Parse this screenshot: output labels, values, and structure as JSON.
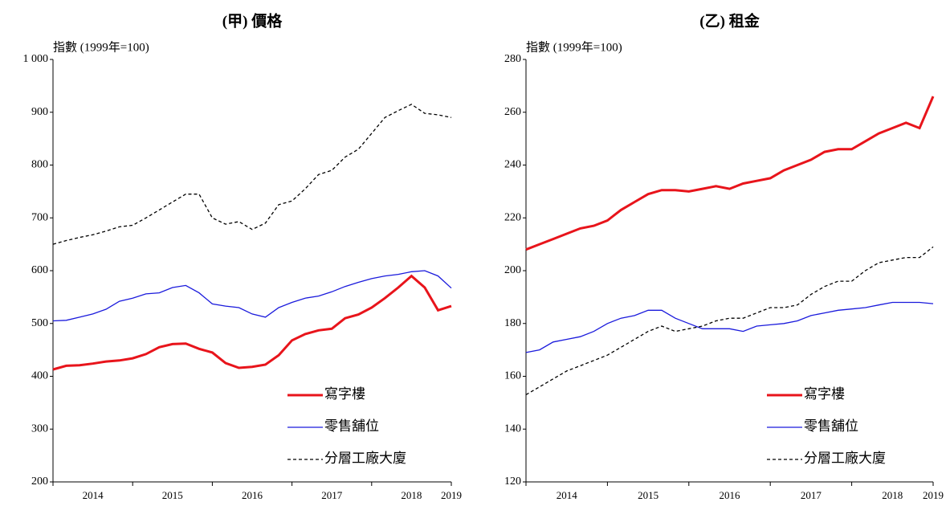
{
  "chart_data": [
    {
      "type": "line",
      "title": "(甲) 價格",
      "y_label": "指數 (1999年=100)",
      "categories": [
        null,
        null,
        null,
        "2014",
        null,
        null,
        null,
        null,
        null,
        "2015",
        null,
        null,
        null,
        null,
        null,
        "2016",
        null,
        null,
        null,
        null,
        null,
        "2017",
        null,
        null,
        null,
        null,
        null,
        "2018",
        null,
        null,
        "2019"
      ],
      "ylim": [
        200,
        1000
      ],
      "yticks": [
        200,
        300,
        400,
        500,
        600,
        700,
        800,
        900,
        {
          "value": 1000,
          "label": "1 000"
        }
      ],
      "legend": "lower right",
      "series": [
        {
          "name": "寫字樓",
          "color": "#e8141b",
          "width": 3,
          "dash": false,
          "values": [
            413,
            420,
            421,
            424,
            428,
            430,
            434,
            442,
            455,
            461,
            462,
            452,
            445,
            425,
            416,
            418,
            422,
            440,
            468,
            480,
            487,
            490,
            510,
            517,
            530,
            548,
            568,
            590,
            568,
            525,
            533
          ]
        },
        {
          "name": "零售舖位",
          "color": "#1a1adc",
          "width": 1.3,
          "dash": false,
          "values": [
            505,
            506,
            512,
            518,
            527,
            542,
            548,
            556,
            558,
            568,
            572,
            558,
            537,
            533,
            530,
            518,
            512,
            530,
            540,
            548,
            552,
            560,
            570,
            578,
            585,
            590,
            593,
            598,
            600,
            590,
            567
          ]
        },
        {
          "name": "分層工廠大廈",
          "color": "#000000",
          "width": 1.3,
          "dash": true,
          "values": [
            650,
            657,
            663,
            668,
            675,
            683,
            686,
            700,
            715,
            730,
            745,
            745,
            700,
            688,
            693,
            678,
            690,
            725,
            732,
            755,
            782,
            790,
            815,
            830,
            860,
            890,
            903,
            915,
            898,
            895,
            890
          ]
        }
      ]
    },
    {
      "type": "line",
      "title": "(乙) 租金",
      "y_label": "指數 (1999年=100)",
      "categories": [
        null,
        null,
        null,
        "2014",
        null,
        null,
        null,
        null,
        null,
        "2015",
        null,
        null,
        null,
        null,
        null,
        "2016",
        null,
        null,
        null,
        null,
        null,
        "2017",
        null,
        null,
        null,
        null,
        null,
        "2018",
        null,
        null,
        "2019"
      ],
      "ylim": [
        120,
        280
      ],
      "yticks": [
        120,
        140,
        160,
        180,
        200,
        220,
        240,
        260,
        280
      ],
      "legend": "lower right",
      "series": [
        {
          "name": "寫字樓",
          "color": "#e8141b",
          "width": 3,
          "dash": false,
          "values": [
            208,
            210,
            212,
            214,
            216,
            217,
            219,
            223,
            226,
            229,
            230.5,
            230.5,
            230,
            231,
            232,
            231,
            233,
            234,
            235,
            238,
            240,
            242,
            245,
            246,
            246,
            249,
            252,
            254,
            256,
            254,
            266
          ]
        },
        {
          "name": "零售舖位",
          "color": "#1a1adc",
          "width": 1.3,
          "dash": false,
          "values": [
            169,
            170,
            173,
            174,
            175,
            177,
            180,
            182,
            183,
            185,
            185,
            182,
            180,
            178,
            178,
            178,
            177,
            179,
            179.5,
            180,
            181,
            183,
            184,
            185,
            185.5,
            186,
            187,
            188,
            188,
            188,
            187.5
          ]
        },
        {
          "name": "分層工廠大廈",
          "color": "#000000",
          "width": 1.3,
          "dash": true,
          "values": [
            153,
            156,
            159,
            162,
            164,
            166,
            168,
            171,
            174,
            177,
            179,
            177,
            178,
            179,
            181,
            182,
            182,
            184,
            186,
            186,
            187,
            191,
            194,
            196,
            196,
            200,
            203,
            204,
            205,
            205,
            209
          ]
        }
      ]
    }
  ]
}
